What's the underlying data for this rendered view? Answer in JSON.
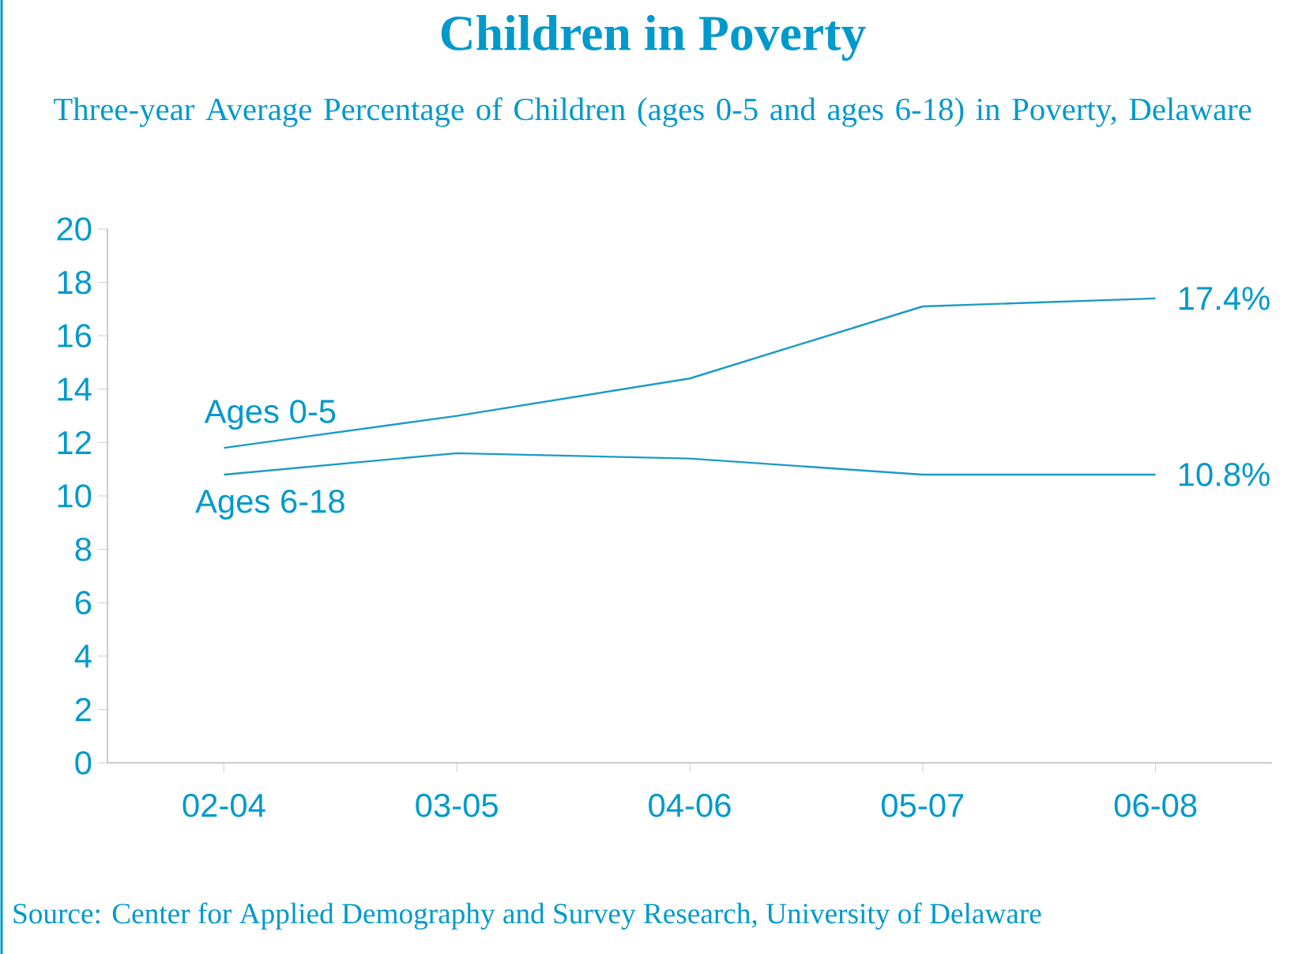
{
  "chart_data": {
    "type": "line",
    "title": "Children in Poverty",
    "subtitle": "Three-year Average Percentage of Children (ages 0-5 and ages 6-18) in Poverty, Delaware",
    "categories": [
      "02-04",
      "03-05",
      "04-06",
      "05-07",
      "06-08"
    ],
    "series": [
      {
        "name": "Ages 0-5",
        "color": "#1a9bc8",
        "values": [
          11.8,
          13.0,
          14.4,
          17.1,
          17.4
        ],
        "value_labels": [
          null,
          null,
          null,
          null,
          "17.4%"
        ]
      },
      {
        "name": "Ages 6-18",
        "color": "#1a9bc8",
        "values": [
          10.8,
          11.6,
          11.4,
          10.8,
          10.8
        ],
        "value_labels": [
          null,
          null,
          null,
          null,
          "10.8%"
        ]
      }
    ],
    "ylim": [
      0,
      20
    ],
    "yticks": [
      0,
      2,
      4,
      6,
      8,
      10,
      12,
      14,
      16,
      18,
      20
    ],
    "marker": "none",
    "line_style": "solid",
    "annotations": [
      "Source: Center for Applied Demography and Survey Research, University of Delaware"
    ]
  }
}
